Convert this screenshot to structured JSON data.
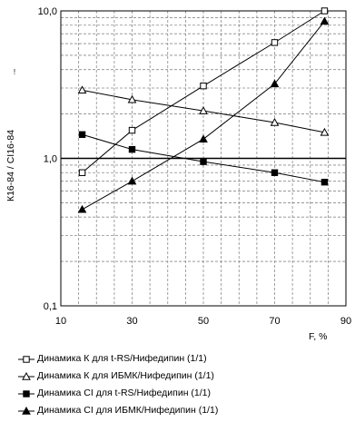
{
  "chart_data": {
    "type": "line",
    "title": "",
    "xlabel": "F, %",
    "ylabel": "К16-84 / CI16-84",
    "ylabel_small": "!",
    "x_ticks": [
      "10",
      "30",
      "50",
      "70",
      "90"
    ],
    "y_ticks": [
      "0,1",
      "1,0",
      "10,0"
    ],
    "xlim": [
      10,
      90
    ],
    "ylim": [
      0.1,
      10
    ],
    "y_scale": "log",
    "grid": true,
    "legend_position": "bottom",
    "series": [
      {
        "name": "Динамика К для t-RS/Нифедипин (1/1)",
        "marker": "open-square",
        "x": [
          16,
          30,
          50,
          70,
          84
        ],
        "y": [
          0.8,
          1.55,
          3.1,
          6.1,
          10.0
        ]
      },
      {
        "name": "Динамика К для ИБМК/Нифедипин (1/1)",
        "marker": "open-triangle",
        "x": [
          16,
          30,
          50,
          70,
          84
        ],
        "y": [
          2.9,
          2.5,
          2.1,
          1.75,
          1.5
        ]
      },
      {
        "name": "Динамика СI для t-RS/Нифедипин (1/1)",
        "marker": "filled-square",
        "x": [
          16,
          30,
          50,
          70,
          84
        ],
        "y": [
          1.45,
          1.15,
          0.95,
          0.8,
          0.69
        ]
      },
      {
        "name": "Динамика СI для ИБМК/Нифедипин (1/1)",
        "marker": "filled-triangle",
        "x": [
          16,
          30,
          50,
          70,
          84
        ],
        "y": [
          0.45,
          0.7,
          1.35,
          3.2,
          8.5
        ]
      }
    ]
  }
}
